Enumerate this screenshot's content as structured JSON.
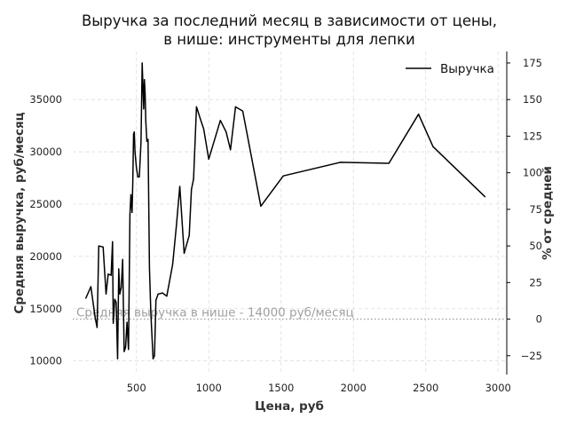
{
  "chart_data": {
    "type": "line",
    "title_line1": "Выручка за последний месяц в зависимости от цены,",
    "title_line2": "в нише: инструменты для лепки",
    "xlabel": "Цена, руб",
    "ylabel": "Средняя выручка, руб/месяц",
    "ylabel_right": "% от средней",
    "xlim": [
      60,
      3060
    ],
    "ylim": [
      8700,
      39600
    ],
    "ylim_right": [
      -37.86,
      182.86
    ],
    "x_ticks": [
      500,
      1000,
      1500,
      2000,
      2500,
      3000
    ],
    "y_ticks": [
      10000,
      15000,
      20000,
      25000,
      30000,
      35000
    ],
    "y_ticks_right": [
      -25,
      0,
      25,
      50,
      75,
      100,
      125,
      150,
      175
    ],
    "grid": true,
    "legend_position": "top-right",
    "reference_line": {
      "y": 14000,
      "label": "Средняя выручка в нише - 14000 руб/месяц",
      "color": "#a0a0a0"
    },
    "series": [
      {
        "name": "Выручка",
        "color": "#000000",
        "x": [
          150,
          185,
          215,
          228,
          240,
          270,
          290,
          305,
          325,
          335,
          340,
          350,
          360,
          370,
          378,
          385,
          395,
          405,
          415,
          425,
          435,
          445,
          455,
          462,
          470,
          475,
          480,
          485,
          490,
          500,
          510,
          520,
          532,
          540,
          550,
          555,
          560,
          565,
          572,
          580,
          590,
          600,
          615,
          625,
          635,
          640,
          650,
          680,
          710,
          750,
          775,
          800,
          830,
          865,
          880,
          895,
          915,
          945,
          965,
          1000,
          1080,
          1120,
          1150,
          1185,
          1235,
          1360,
          1515,
          1910,
          2245,
          2450,
          2550,
          2910
        ],
        "values": [
          16000,
          17100,
          14100,
          13200,
          21000,
          20900,
          16400,
          18300,
          18200,
          21400,
          13600,
          15900,
          15600,
          10200,
          18800,
          16400,
          17000,
          19700,
          10900,
          11300,
          13700,
          11100,
          24000,
          25900,
          24200,
          27000,
          31700,
          31900,
          30000,
          28500,
          27600,
          27600,
          31000,
          38500,
          34100,
          36900,
          35600,
          32900,
          31000,
          31200,
          18900,
          14500,
          10200,
          10500,
          15800,
          16000,
          16400,
          16500,
          16200,
          19200,
          22700,
          26700,
          20300,
          22000,
          26400,
          27400,
          34300,
          33000,
          32200,
          29300,
          33000,
          31900,
          30200,
          34300,
          33900,
          24800,
          27700,
          29000,
          28900,
          33600,
          30500,
          25700
        ]
      }
    ]
  }
}
